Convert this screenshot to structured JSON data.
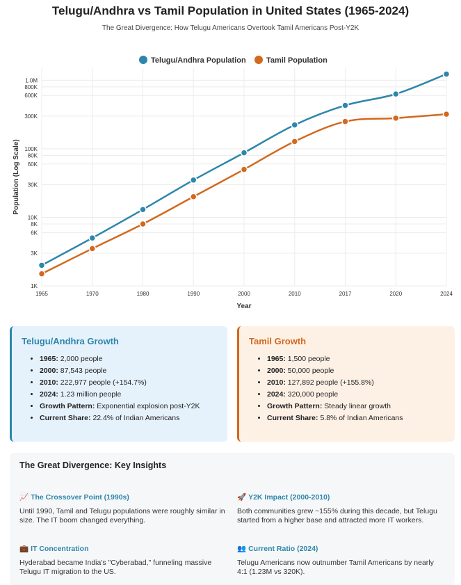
{
  "header": {
    "title": "Telugu/Andhra vs Tamil Population in United States (1965-2024)",
    "subtitle": "The Great Divergence: How Telugu Americans Overtook Tamil Americans Post-Y2K"
  },
  "chart_data": {
    "type": "line",
    "x": [
      "1965",
      "1970",
      "1980",
      "1990",
      "2000",
      "2010",
      "2017",
      "2020",
      "2024"
    ],
    "series": [
      {
        "name": "Telugu/Andhra Population",
        "color": "#2e86ab",
        "values": [
          2000,
          5000,
          13000,
          35000,
          87543,
          222977,
          430000,
          630000,
          1230000
        ]
      },
      {
        "name": "Tamil Population",
        "color": "#d2691e",
        "values": [
          1500,
          3500,
          8000,
          20000,
          50000,
          127892,
          250000,
          280000,
          320000
        ]
      }
    ],
    "ylabel": "Population (Log Scale)",
    "xlabel": "Year",
    "yscale": "log",
    "ylim": [
      1000,
      1500000
    ],
    "yticks": [
      {
        "v": 1000,
        "label": "1K"
      },
      {
        "v": 3000,
        "label": "3K"
      },
      {
        "v": 6000,
        "label": "6K"
      },
      {
        "v": 8000,
        "label": "8K"
      },
      {
        "v": 10000,
        "label": "10K"
      },
      {
        "v": 30000,
        "label": "30K"
      },
      {
        "v": 60000,
        "label": "60K"
      },
      {
        "v": 80000,
        "label": "80K"
      },
      {
        "v": 100000,
        "label": "100K"
      },
      {
        "v": 300000,
        "label": "300K"
      },
      {
        "v": 600000,
        "label": "600K"
      },
      {
        "v": 800000,
        "label": "800K"
      },
      {
        "v": 1000000,
        "label": "1.0M"
      }
    ],
    "grid": true,
    "legend": "top-center"
  },
  "telugu_card": {
    "title": "Telugu/Andhra Growth",
    "items": [
      {
        "label": "1965:",
        "text": "2,000 people"
      },
      {
        "label": "2000:",
        "text": "87,543 people"
      },
      {
        "label": "2010:",
        "text": "222,977 people (+154.7%)"
      },
      {
        "label": "2024:",
        "text": "1.23 million people"
      },
      {
        "label": "Growth Pattern:",
        "text": "Exponential explosion post-Y2K"
      },
      {
        "label": "Current Share:",
        "text": "22.4% of Indian Americans"
      }
    ]
  },
  "tamil_card": {
    "title": "Tamil Growth",
    "items": [
      {
        "label": "1965:",
        "text": "1,500 people"
      },
      {
        "label": "2000:",
        "text": "50,000 people"
      },
      {
        "label": "2010:",
        "text": "127,892 people (+155.8%)"
      },
      {
        "label": "2024:",
        "text": "320,000 people"
      },
      {
        "label": "Growth Pattern:",
        "text": "Steady linear growth"
      },
      {
        "label": "Current Share:",
        "text": "5.8% of Indian Americans"
      }
    ]
  },
  "insights": {
    "title": "The Great Divergence: Key Insights",
    "items": [
      {
        "icon": "📈",
        "icon_name": "chart-up-icon",
        "title": "The Crossover Point (1990s)",
        "text": "Until 1990, Tamil and Telugu populations were roughly similar in size. The IT boom changed everything."
      },
      {
        "icon": "🚀",
        "icon_name": "rocket-icon",
        "title": "Y2K Impact (2000-2010)",
        "text": "Both communities grew ~155% during this decade, but Telugu started from a higher base and attracted more IT workers."
      },
      {
        "icon": "💼",
        "icon_name": "briefcase-icon",
        "title": "IT Concentration",
        "text": "Hyderabad became India's \"Cyberabad,\" funneling massive Telugu IT migration to the US."
      },
      {
        "icon": "👥",
        "icon_name": "people-icon",
        "title": "Current Ratio (2024)",
        "text": "Telugu Americans now outnumber Tamil Americans by nearly 4:1 (1.23M vs 320K)."
      }
    ]
  }
}
